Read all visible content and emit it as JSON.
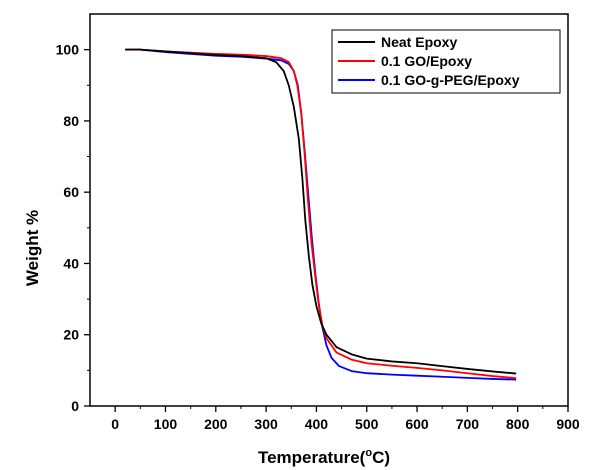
{
  "chart_data": {
    "type": "line",
    "xlabel": "Temperature(",
    "xlabel_sup": "o",
    "xlabel_tail": "C)",
    "ylabel": "Weight %",
    "xlim": [
      -50,
      900
    ],
    "ylim": [
      0,
      110
    ],
    "x_ticks": [
      0,
      100,
      200,
      300,
      400,
      500,
      600,
      700,
      800,
      900
    ],
    "y_ticks": [
      0,
      20,
      40,
      60,
      80,
      100
    ],
    "legend_position": "top-right",
    "series": [
      {
        "name": "Neat Epoxy",
        "color": "#000000",
        "points": [
          [
            20,
            100
          ],
          [
            50,
            100
          ],
          [
            100,
            99.5
          ],
          [
            200,
            98.5
          ],
          [
            250,
            98.2
          ],
          [
            300,
            97.6
          ],
          [
            320,
            96.5
          ],
          [
            335,
            94
          ],
          [
            345,
            90
          ],
          [
            355,
            84
          ],
          [
            365,
            75
          ],
          [
            372,
            64
          ],
          [
            378,
            52
          ],
          [
            385,
            42
          ],
          [
            392,
            34
          ],
          [
            400,
            28
          ],
          [
            410,
            23
          ],
          [
            420,
            20
          ],
          [
            440,
            16.5
          ],
          [
            470,
            14.5
          ],
          [
            500,
            13.3
          ],
          [
            550,
            12.5
          ],
          [
            600,
            12
          ],
          [
            650,
            11.2
          ],
          [
            700,
            10.4
          ],
          [
            750,
            9.7
          ],
          [
            797,
            9.1
          ]
        ]
      },
      {
        "name": "0.1 GO/Epoxy",
        "color": "#ff0000",
        "points": [
          [
            20,
            100
          ],
          [
            50,
            100
          ],
          [
            100,
            99.5
          ],
          [
            200,
            98.8
          ],
          [
            250,
            98.6
          ],
          [
            300,
            98.2
          ],
          [
            330,
            97.6
          ],
          [
            345,
            96.5
          ],
          [
            355,
            94
          ],
          [
            362,
            90
          ],
          [
            370,
            82
          ],
          [
            377,
            70
          ],
          [
            383,
            58
          ],
          [
            390,
            46
          ],
          [
            398,
            36
          ],
          [
            405,
            28
          ],
          [
            412,
            22.5
          ],
          [
            420,
            19
          ],
          [
            440,
            15
          ],
          [
            470,
            13
          ],
          [
            500,
            12
          ],
          [
            550,
            11.3
          ],
          [
            600,
            10.7
          ],
          [
            650,
            10
          ],
          [
            700,
            9.2
          ],
          [
            750,
            8.4
          ],
          [
            797,
            7.8
          ]
        ]
      },
      {
        "name": "0.1 GO-g-PEG/Epoxy",
        "color": "#0000ff",
        "points": [
          [
            20,
            100
          ],
          [
            50,
            100
          ],
          [
            100,
            99.3
          ],
          [
            200,
            98.3
          ],
          [
            250,
            98
          ],
          [
            300,
            97.5
          ],
          [
            330,
            97
          ],
          [
            345,
            96
          ],
          [
            355,
            94
          ],
          [
            363,
            90
          ],
          [
            370,
            82
          ],
          [
            377,
            71
          ],
          [
            384,
            59
          ],
          [
            391,
            47
          ],
          [
            398,
            37
          ],
          [
            405,
            28.5
          ],
          [
            412,
            22
          ],
          [
            420,
            17
          ],
          [
            430,
            13.5
          ],
          [
            445,
            11.2
          ],
          [
            470,
            9.8
          ],
          [
            500,
            9.2
          ],
          [
            550,
            8.8
          ],
          [
            600,
            8.5
          ],
          [
            650,
            8.2
          ],
          [
            700,
            7.9
          ],
          [
            750,
            7.6
          ],
          [
            797,
            7.4
          ]
        ]
      }
    ]
  }
}
